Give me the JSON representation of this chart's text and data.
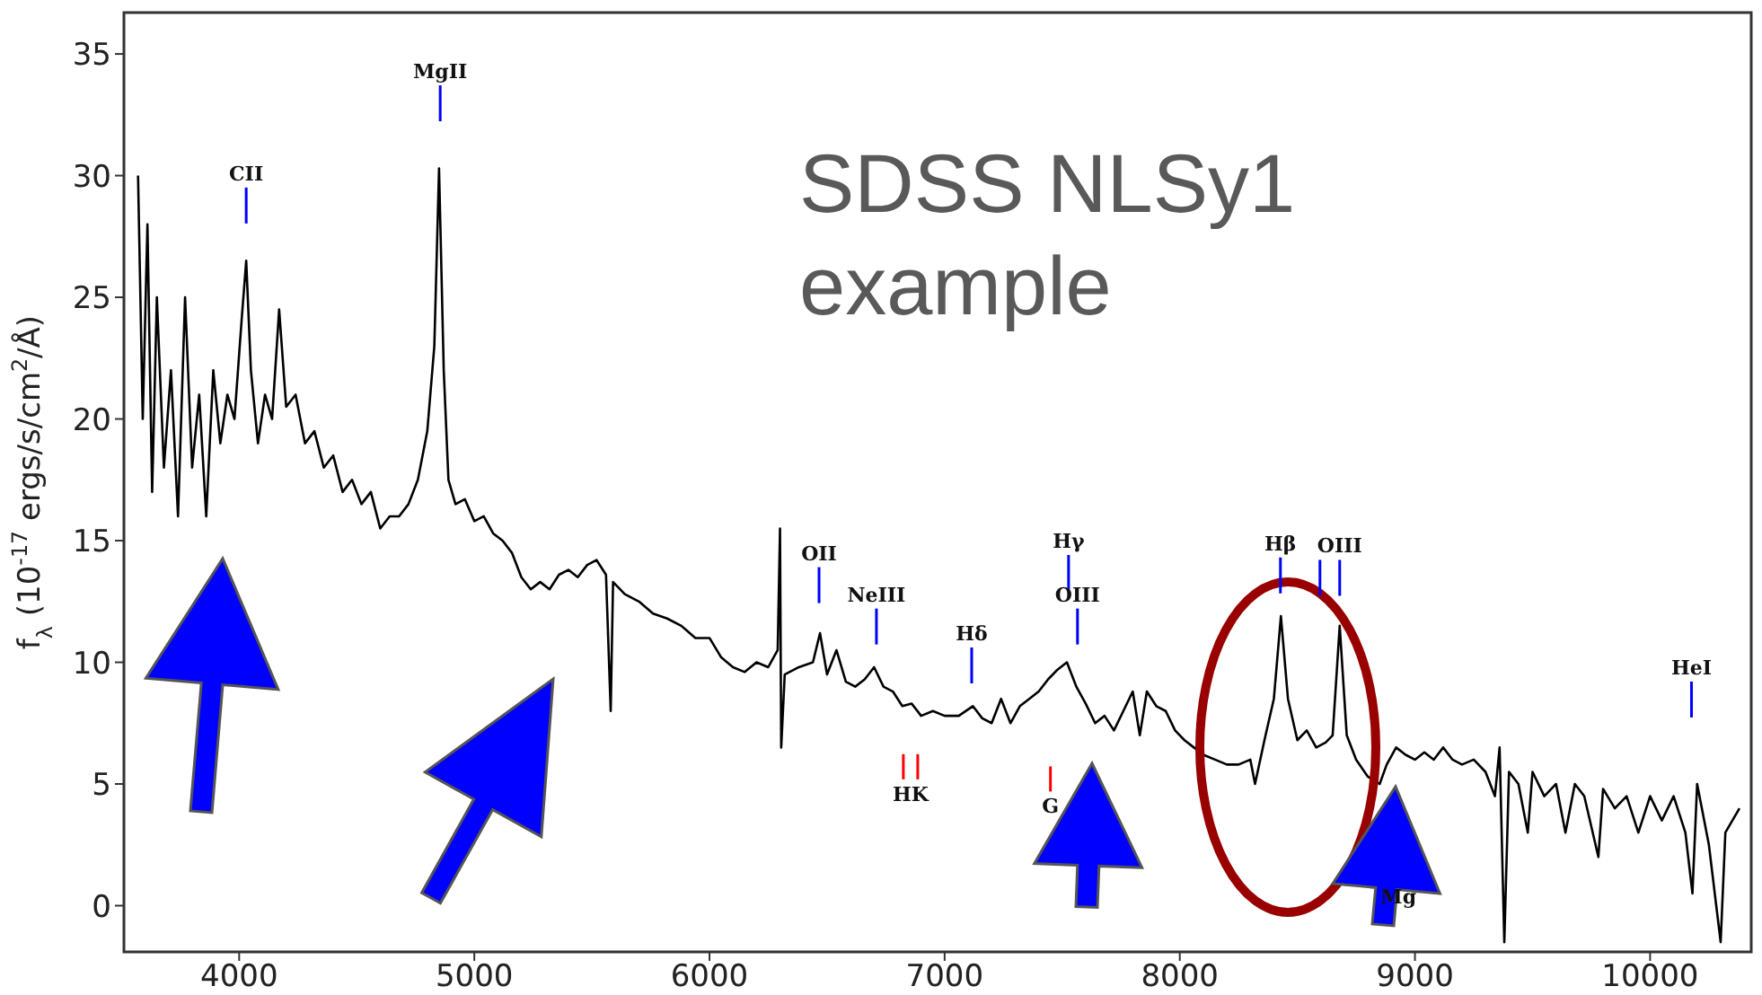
{
  "chart_data": {
    "type": "line",
    "ylabel": "f$_{λ}$ (10$^{-17}$ ergs/s/cm$^{2}$/Å)",
    "x": [
      3570,
      3590,
      3610,
      3630,
      3650,
      3680,
      3710,
      3740,
      3770,
      3800,
      3830,
      3860,
      3890,
      3920,
      3950,
      3980,
      4010,
      4030,
      4050,
      4080,
      4110,
      4140,
      4170,
      4200,
      4240,
      4280,
      4320,
      4360,
      4400,
      4440,
      4480,
      4520,
      4560,
      4600,
      4640,
      4680,
      4720,
      4760,
      4800,
      4830,
      4850,
      4870,
      4890,
      4920,
      4960,
      5000,
      5040,
      5080,
      5120,
      5160,
      5200,
      5240,
      5280,
      5320,
      5360,
      5400,
      5440,
      5480,
      5520,
      5560,
      5580,
      5590,
      5640,
      5700,
      5760,
      5820,
      5880,
      5940,
      6000,
      6050,
      6100,
      6150,
      6200,
      6250,
      6290,
      6300,
      6305,
      6320,
      6380,
      6440,
      6470,
      6500,
      6540,
      6580,
      6620,
      6660,
      6700,
      6740,
      6780,
      6820,
      6860,
      6900,
      6950,
      7000,
      7060,
      7120,
      7160,
      7200,
      7240,
      7280,
      7320,
      7360,
      7400,
      7440,
      7480,
      7520,
      7560,
      7600,
      7640,
      7680,
      7720,
      7760,
      7800,
      7830,
      7860,
      7900,
      7940,
      7980,
      8020,
      8060,
      8100,
      8150,
      8200,
      8250,
      8300,
      8320,
      8360,
      8400,
      8430,
      8460,
      8500,
      8540,
      8580,
      8620,
      8650,
      8680,
      8710,
      8750,
      8800,
      8850,
      8880,
      8920,
      8960,
      9000,
      9040,
      9080,
      9120,
      9160,
      9200,
      9250,
      9300,
      9340,
      9360,
      9380,
      9400,
      9440,
      9480,
      9500,
      9550,
      9600,
      9640,
      9680,
      9720,
      9780,
      9800,
      9850,
      9900,
      9950,
      10000,
      10050,
      10100,
      10150,
      10180,
      10200,
      10250,
      10300,
      10320,
      10380
    ],
    "series": [
      {
        "color": "#000000",
        "values": [
          30,
          20,
          28,
          17,
          25,
          18,
          22,
          16,
          25,
          18,
          21,
          16,
          22,
          19,
          21,
          20,
          24,
          26.5,
          22,
          19,
          21,
          20,
          24.5,
          20.5,
          21,
          19,
          19.5,
          18,
          18.5,
          17,
          17.5,
          16.5,
          17,
          15.5,
          16,
          16,
          16.5,
          17.5,
          19.5,
          23,
          30.3,
          22,
          17.5,
          16.5,
          16.7,
          15.8,
          16,
          15.3,
          15,
          14.5,
          13.5,
          13,
          13.3,
          13,
          13.6,
          13.8,
          13.5,
          14,
          14.2,
          13.6,
          8,
          13.3,
          12.8,
          12.5,
          12,
          11.8,
          11.5,
          11,
          11,
          10.2,
          9.8,
          9.6,
          10,
          9.8,
          10.5,
          15.5,
          6.5,
          9.5,
          9.8,
          10,
          11.2,
          9.5,
          10.5,
          9.2,
          9,
          9.3,
          9.8,
          9,
          8.8,
          8.2,
          8.3,
          7.8,
          8,
          7.8,
          7.8,
          8.2,
          7.7,
          7.5,
          8.5,
          7.5,
          8.2,
          8.5,
          8.8,
          9.3,
          9.7,
          10,
          9,
          8.3,
          7.5,
          7.8,
          7.2,
          8,
          8.8,
          7,
          8.8,
          8.2,
          8,
          7.2,
          6.8,
          6.5,
          6.2,
          6,
          5.8,
          5.8,
          6,
          5,
          6.8,
          8.5,
          11.9,
          8.5,
          6.8,
          7.2,
          6.5,
          6.7,
          7,
          11.5,
          7,
          6,
          5.3,
          5,
          5.8,
          6.5,
          6.2,
          6,
          6.3,
          6,
          6.5,
          6,
          5.8,
          6,
          5.5,
          4.5,
          6.5,
          -1.5,
          5.5,
          5,
          3,
          5.5,
          4.5,
          5,
          3,
          5,
          4.5,
          2,
          4.8,
          4,
          4.5,
          3,
          4.5,
          3.5,
          4.5,
          3,
          0.5,
          5,
          2.5,
          -1.5,
          3,
          4
        ]
      }
    ],
    "xlim": [
      3510,
      10430
    ],
    "ylim": [
      -1.9,
      36.7
    ],
    "xticks": [
      4000,
      5000,
      6000,
      7000,
      8000,
      9000,
      10000
    ],
    "yticks": [
      0,
      5,
      10,
      15,
      20,
      25,
      30,
      35
    ],
    "grid": false,
    "legend": false,
    "marker": "none",
    "line_style": "solid",
    "annotations": [
      "SDSS NLSy1\nexample",
      "CII",
      "MgII",
      "OII",
      "NeIII",
      "Hδ",
      "Hγ",
      "OIII",
      "Hβ",
      "OIII",
      "HeI",
      "HK",
      "G",
      "Mg"
    ]
  }
}
